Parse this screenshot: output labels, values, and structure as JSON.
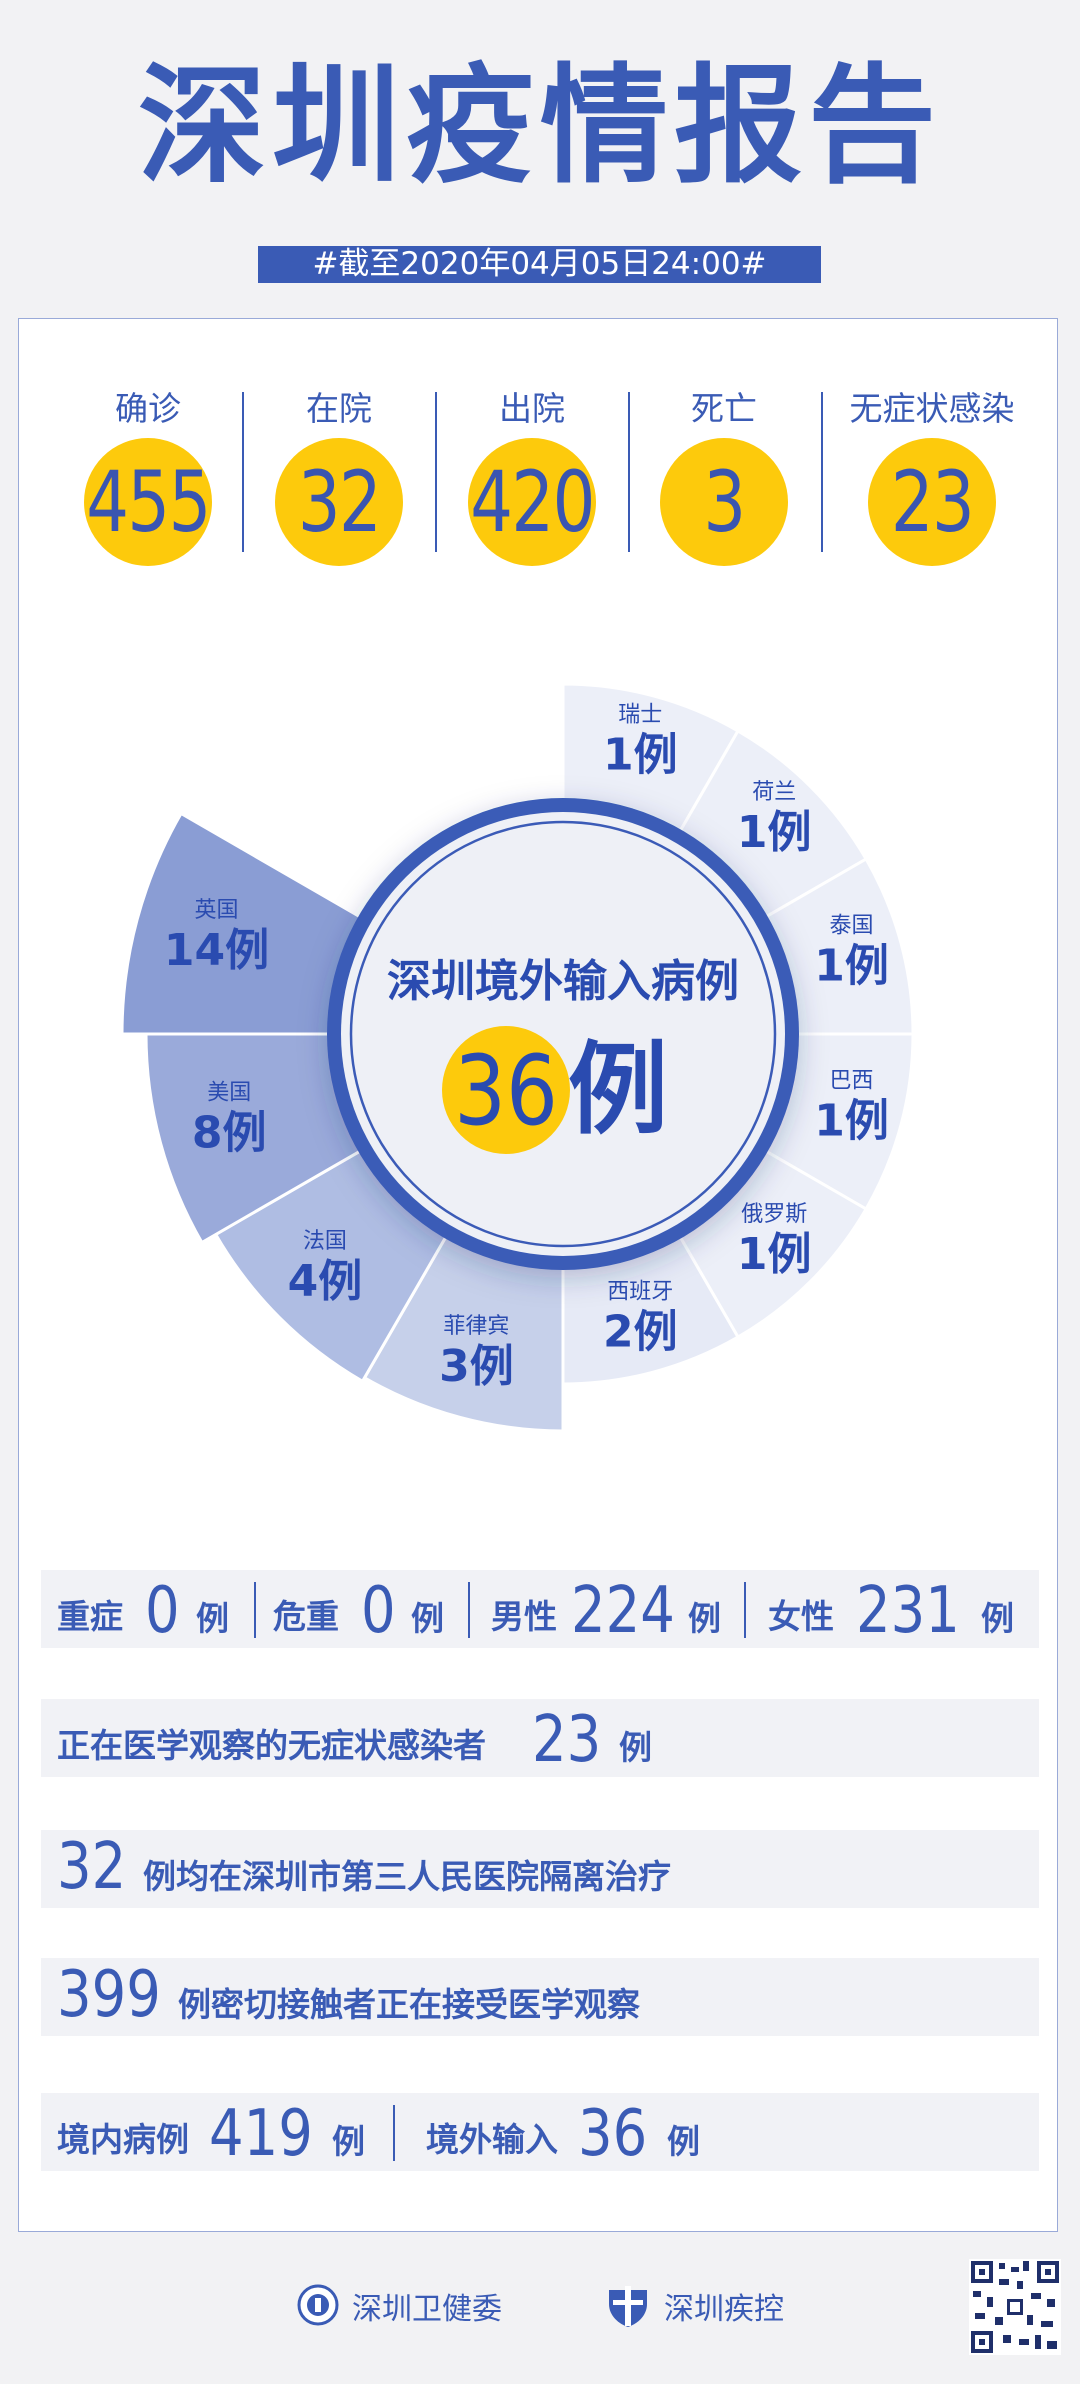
{
  "header": {
    "title": "深圳疫情报告",
    "date": "#截至2020年04月05日24:00#"
  },
  "stats": [
    {
      "label": "确诊",
      "value": "455"
    },
    {
      "label": "在院",
      "value": "32"
    },
    {
      "label": "出院",
      "value": "420"
    },
    {
      "label": "死亡",
      "value": "3"
    },
    {
      "label": "无症状感染",
      "value": "23"
    }
  ],
  "center": {
    "title": "深圳境外输入病例",
    "value": "36",
    "unit": "例"
  },
  "chart_data": {
    "type": "pie",
    "variant": "nightingale-rose",
    "title": "深圳境外输入病例",
    "categories": [
      "瑞士",
      "荷兰",
      "泰国",
      "巴西",
      "俄罗斯",
      "西班牙",
      "菲律宾",
      "法国",
      "美国",
      "英国"
    ],
    "values": [
      1,
      1,
      1,
      1,
      1,
      2,
      3,
      4,
      8,
      14
    ],
    "unit": "例",
    "total": 36,
    "colors": [
      "#eceff8",
      "#eceff8",
      "#eceff8",
      "#eceff8",
      "#eceff8",
      "#e6eaf6",
      "#c6d0ea",
      "#afbde3",
      "#9aaada",
      "#8a9dd4"
    ]
  },
  "rows": {
    "r1": {
      "severe_label": "重症",
      "severe": "0",
      "critical_label": "危重",
      "critical": "0",
      "male_label": "男性",
      "male": "224",
      "female_label": "女性",
      "female": "231",
      "unit": "例"
    },
    "r2": {
      "label": "正在医学观察的无症状感染者",
      "value": "23",
      "unit": "例"
    },
    "r3": {
      "value": "32",
      "text": "例均在深圳市第三人民医院隔离治疗"
    },
    "r4": {
      "value": "399",
      "text": "例密切接触者正在接受医学观察"
    },
    "r5": {
      "domestic_label": "境内病例",
      "domestic": "419",
      "imported_label": "境外输入",
      "imported": "36",
      "unit": "例"
    }
  },
  "footer": {
    "org1": "深圳卫健委",
    "org2": "深圳疾控"
  },
  "colors": {
    "primary": "#3a5bb5",
    "accent": "#fdca0c",
    "background": "#f2f2f4"
  }
}
